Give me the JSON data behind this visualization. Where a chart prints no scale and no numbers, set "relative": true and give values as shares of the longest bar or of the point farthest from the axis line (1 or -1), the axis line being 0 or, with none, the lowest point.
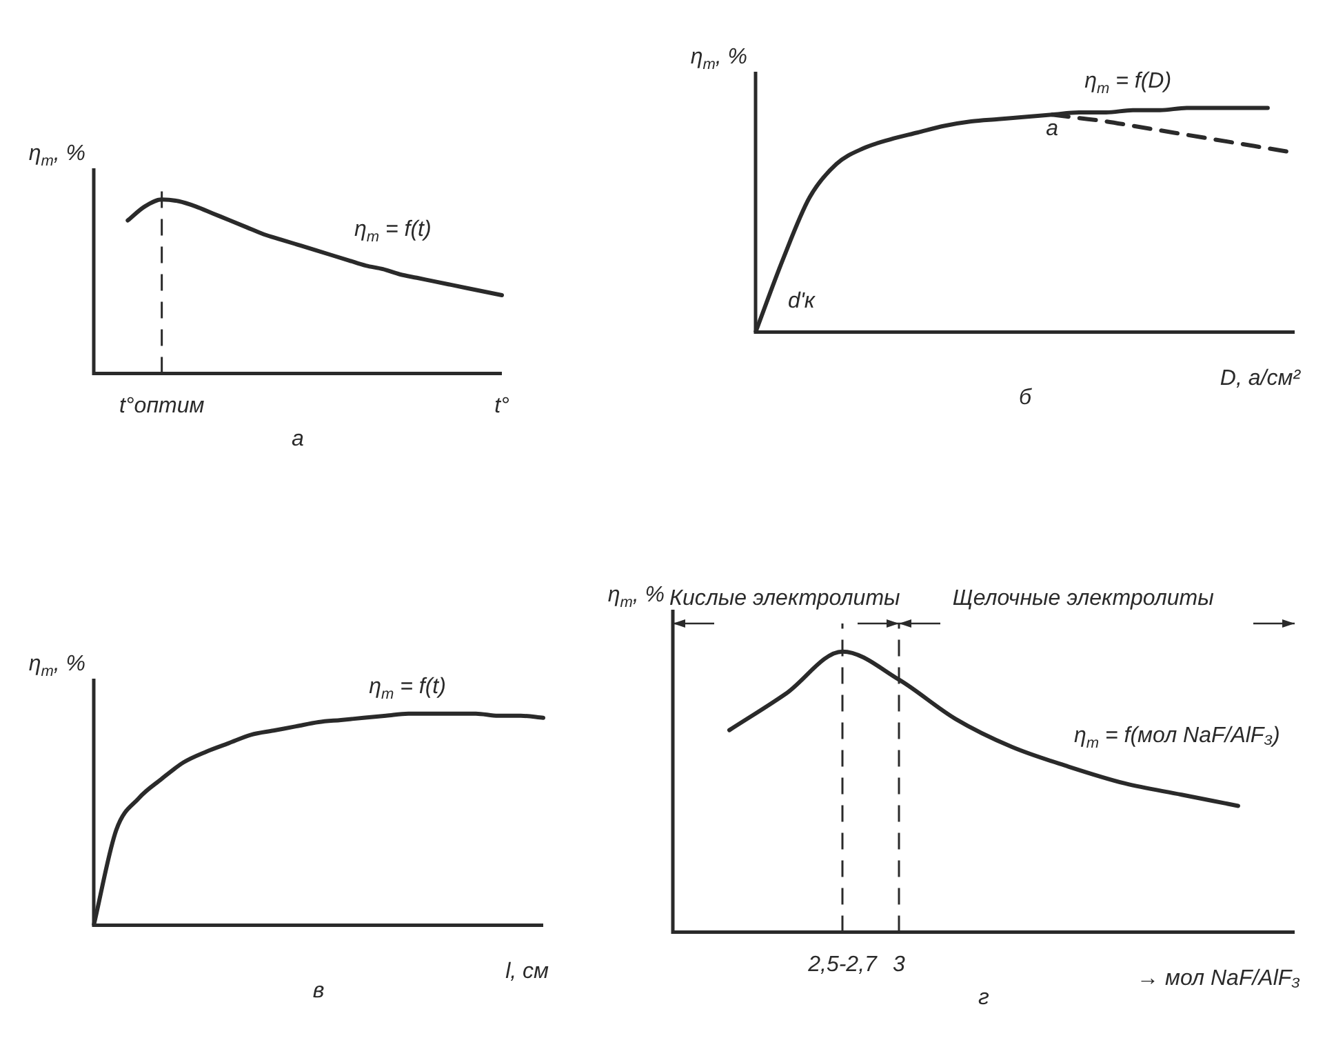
{
  "chart_data": [
    {
      "type": "line",
      "title": "а",
      "ylabel": "η$_{т}$, %",
      "relative": true,
      "legend": false,
      "grid": false,
      "categories": [
        null,
        null,
        null,
        null,
        "t°оптим",
        null,
        null,
        null,
        null,
        null,
        null,
        null,
        null,
        null,
        null,
        null,
        null,
        null,
        null,
        null,
        null,
        null,
        null,
        null,
        "t°"
      ],
      "series": [
        {
          "name": "η$_{т}$ = f(t)",
          "color": "#2a2a2a",
          "line_style": "solid",
          "values": [
            null,
            null,
            0.88,
            0.96,
            1.0,
            0.99,
            0.96,
            0.92,
            0.88,
            0.84,
            0.8,
            0.77,
            0.74,
            0.71,
            0.68,
            0.65,
            0.62,
            0.6,
            0.57,
            0.55,
            0.53,
            0.51,
            0.49,
            0.47,
            0.45
          ]
        }
      ],
      "ref_lines": [
        {
          "axis": "x",
          "value": "t°оптим",
          "line_style": "dashed"
        }
      ]
    },
    {
      "type": "line",
      "title": "б",
      "xlabel": "D, а/см²",
      "ylabel": "η$_{т}$, %",
      "relative": true,
      "legend": false,
      "grid": false,
      "categories": [
        null,
        null,
        null,
        null,
        null,
        null,
        null,
        null,
        null,
        null,
        null,
        null,
        null,
        null,
        null,
        null,
        null,
        null,
        null,
        null,
        null
      ],
      "series": [
        {
          "name": "η$_{т}$ = f(D)",
          "color": "#2a2a2a",
          "line_style": "solid",
          "values": [
            0,
            0.32,
            0.6,
            0.75,
            0.82,
            0.86,
            0.89,
            0.92,
            0.94,
            0.95,
            0.96,
            0.97,
            0.98,
            0.98,
            0.99,
            0.99,
            1.0,
            1.0,
            1.0,
            1.0,
            null
          ]
        },
        {
          "color": "#2a2a2a",
          "line_style": "dashed",
          "values": [
            null,
            null,
            null,
            null,
            null,
            null,
            null,
            null,
            null,
            null,
            null,
            0.97,
            0.955,
            0.94,
            0.92,
            0.9,
            0.88,
            0.86,
            0.84,
            0.82,
            0.8
          ]
        }
      ],
      "annotations": [
        "a",
        "d'к"
      ]
    },
    {
      "type": "line",
      "title": "в",
      "xlabel": "l, см",
      "ylabel": "η$_{т}$, %",
      "relative": true,
      "legend": false,
      "grid": false,
      "categories": [
        null,
        null,
        null,
        null,
        null,
        null,
        null,
        null,
        null,
        null,
        null,
        null,
        null,
        null,
        null,
        null,
        null,
        null,
        null,
        null,
        null
      ],
      "series": [
        {
          "name": "η$_{т}$ = f(t)",
          "color": "#2a2a2a",
          "line_style": "solid",
          "values": [
            0,
            0.45,
            0.6,
            0.69,
            0.77,
            0.82,
            0.86,
            0.9,
            0.92,
            0.94,
            0.96,
            0.97,
            0.98,
            0.99,
            1.0,
            1.0,
            1.0,
            1.0,
            0.99,
            0.99,
            0.98
          ]
        }
      ]
    },
    {
      "type": "line",
      "title": "г",
      "xlabel": "→ мол NaF/AlF₃",
      "ylabel": "η$_{т}$, %",
      "relative": true,
      "legend": false,
      "grid": false,
      "categories": [
        null,
        null,
        null,
        "2,5-2,7",
        "3",
        null,
        null,
        null,
        null,
        null,
        null,
        null
      ],
      "series": [
        {
          "name": "η$_{т}$ = f(мол NaF/AlF₃)",
          "color": "#2a2a2a",
          "line_style": "solid",
          "values": [
            null,
            0.72,
            0.85,
            1.0,
            0.9,
            0.76,
            0.66,
            0.59,
            0.53,
            0.49,
            0.45,
            null
          ]
        }
      ],
      "ref_lines": [
        {
          "axis": "x",
          "value": "2,5-2,7",
          "line_style": "dashed"
        },
        {
          "axis": "x",
          "value": "3",
          "line_style": "dashed"
        }
      ],
      "annotations": [
        "Кислые электролиты",
        "Щелочные электролиты"
      ]
    }
  ]
}
